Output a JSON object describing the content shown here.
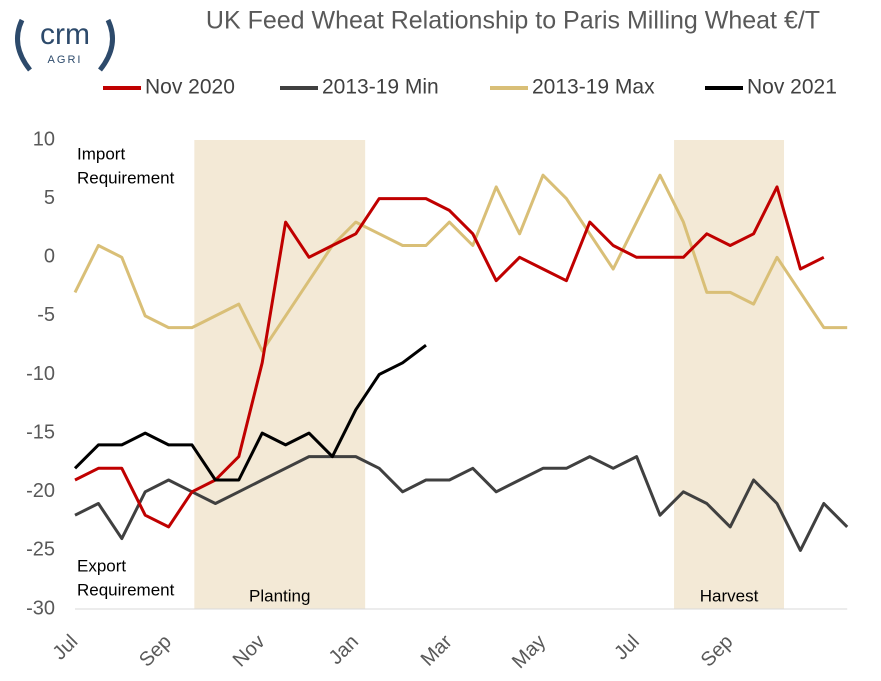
{
  "chart_data": {
    "type": "line",
    "title": "UK Feed Wheat Relationship to Paris Milling Wheat €/T",
    "logo": {
      "name": "crm",
      "sub": "AGRI"
    },
    "categories": [
      "Jul",
      null,
      null,
      null,
      "Sep",
      null,
      null,
      null,
      "Nov",
      null,
      null,
      null,
      "Jan",
      null,
      null,
      null,
      "Mar",
      null,
      null,
      null,
      "May",
      null,
      null,
      null,
      "Jul",
      null,
      null,
      null,
      "Sep",
      null,
      null,
      null,
      null,
      null
    ],
    "series": [
      {
        "name": "Nov 2020",
        "color": "#c00000",
        "values": [
          -19,
          -18,
          -18,
          -22,
          -23,
          -20,
          -19,
          -17,
          -9,
          3,
          0,
          1,
          2,
          5,
          5,
          5,
          4,
          2,
          -2,
          0,
          -1,
          -2,
          3,
          1,
          0,
          0,
          0,
          2,
          1,
          2,
          6,
          -1,
          0,
          null
        ]
      },
      {
        "name": "2013-19 Min",
        "color": "#404040",
        "values": [
          -22,
          -21,
          -24,
          -20,
          -19,
          -20,
          -21,
          -20,
          -19,
          -18,
          -17,
          -17,
          -17,
          -18,
          -20,
          -19,
          -19,
          -18,
          -20,
          -19,
          -18,
          -18,
          -17,
          -18,
          -17,
          -22,
          -20,
          -21,
          -23,
          -19,
          -21,
          -25,
          -21,
          -23
        ]
      },
      {
        "name": "2013-19 Max",
        "color": "#d9bf77",
        "values": [
          -3,
          1,
          0,
          -5,
          -6,
          -6,
          -5,
          -4,
          -8,
          -5,
          -2,
          1,
          3,
          2,
          1,
          1,
          3,
          1,
          6,
          2,
          7,
          5,
          2,
          -1,
          3,
          7,
          3,
          -3,
          -3,
          -4,
          0,
          -3,
          -6,
          -6
        ]
      },
      {
        "name": "Nov 2021",
        "color": "#000000",
        "values": [
          -18,
          -16,
          -16,
          -15,
          -16,
          -16,
          -19,
          -19,
          -15,
          -16,
          -15,
          -17,
          -13,
          -10,
          -9,
          -7.5,
          null,
          null,
          null,
          null,
          null,
          null,
          null,
          null,
          null,
          null,
          null,
          null,
          null,
          null,
          null,
          null,
          null,
          null
        ]
      }
    ],
    "bands": [
      {
        "label": "Planting",
        "start": 5.1,
        "end": 12.4
      },
      {
        "label": "Harvest",
        "start": 25.6,
        "end": 30.3
      }
    ],
    "annotations": [
      {
        "lines": [
          "Import",
          "Requirement"
        ]
      },
      {
        "lines": [
          "Export",
          "Requirement"
        ]
      }
    ],
    "ylim": [
      -30,
      10
    ],
    "yticks": [
      10,
      5,
      0,
      -5,
      -10,
      -15,
      -20,
      -25,
      -30
    ],
    "grid": false,
    "legend": "top"
  }
}
